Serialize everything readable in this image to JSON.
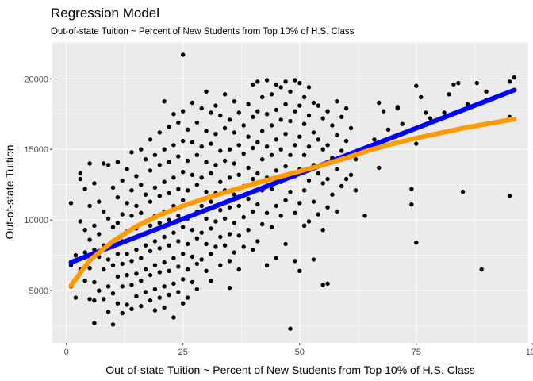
{
  "chart_data": {
    "type": "scatter",
    "title": "Regression Model",
    "subtitle": "Out-of-state Tuition ~ Percent of New Students from Top 10% of H.S. Class",
    "xlabel": "Out-of-state Tuition ~ Percent of New Students from Top 10% of H.S. Class",
    "ylabel": "Out-of-state Tuition",
    "xlim": [
      -3,
      99
    ],
    "ylim": [
      1300,
      22600
    ],
    "x_ticks": [
      0,
      25,
      50,
      75,
      100
    ],
    "x_tick_labels": [
      "0",
      "25",
      "50",
      "75",
      "100"
    ],
    "y_ticks": [
      5000,
      10000,
      15000,
      20000
    ],
    "y_tick_labels": [
      "5000",
      "10000",
      "15000",
      "20000"
    ],
    "grid": true,
    "legend": "none",
    "colors": {
      "panel": "#ebebeb",
      "grid": "#ffffff",
      "points": "#000000",
      "line_fit": "#0000ff",
      "curve_fit": "#ff9a00"
    },
    "points": [
      [
        1,
        11200
      ],
      [
        1,
        6800
      ],
      [
        1,
        5300
      ],
      [
        2,
        7500
      ],
      [
        2,
        4500
      ],
      [
        3,
        13300
      ],
      [
        3,
        12900
      ],
      [
        3,
        9900
      ],
      [
        3,
        6500
      ],
      [
        4,
        12200
      ],
      [
        4,
        9300
      ],
      [
        4,
        7700
      ],
      [
        4,
        5700
      ],
      [
        5,
        14000
      ],
      [
        5,
        11000
      ],
      [
        5,
        8600
      ],
      [
        5,
        6600
      ],
      [
        5,
        4400
      ],
      [
        6,
        12600
      ],
      [
        6,
        9600
      ],
      [
        6,
        7900
      ],
      [
        6,
        5600
      ],
      [
        6,
        4300
      ],
      [
        6,
        2700
      ],
      [
        7,
        11300
      ],
      [
        7,
        9000
      ],
      [
        7,
        7400
      ],
      [
        7,
        5000
      ],
      [
        8,
        14000
      ],
      [
        8,
        10600
      ],
      [
        8,
        8200
      ],
      [
        8,
        6500
      ],
      [
        8,
        4400
      ],
      [
        9,
        13900
      ],
      [
        9,
        10100
      ],
      [
        9,
        7200
      ],
      [
        9,
        5300
      ],
      [
        9,
        3500
      ],
      [
        10,
        12300
      ],
      [
        10,
        9500
      ],
      [
        10,
        8100
      ],
      [
        10,
        6800
      ],
      [
        10,
        4800
      ],
      [
        10,
        2600
      ],
      [
        11,
        14100
      ],
      [
        11,
        11600
      ],
      [
        11,
        9800
      ],
      [
        11,
        7600
      ],
      [
        11,
        6000
      ],
      [
        11,
        4100
      ],
      [
        12,
        12800
      ],
      [
        12,
        10400
      ],
      [
        12,
        8500
      ],
      [
        12,
        6900
      ],
      [
        12,
        5300
      ],
      [
        12,
        3400
      ],
      [
        13,
        13600
      ],
      [
        13,
        11200
      ],
      [
        13,
        9200
      ],
      [
        13,
        7600
      ],
      [
        13,
        6100
      ],
      [
        13,
        4000
      ],
      [
        14,
        14800
      ],
      [
        14,
        12100
      ],
      [
        14,
        10300
      ],
      [
        14,
        8700
      ],
      [
        14,
        7100
      ],
      [
        14,
        5400
      ],
      [
        14,
        3700
      ],
      [
        15,
        13100
      ],
      [
        15,
        11000
      ],
      [
        15,
        9400
      ],
      [
        15,
        7900
      ],
      [
        15,
        6200
      ],
      [
        15,
        4600
      ],
      [
        16,
        15000
      ],
      [
        16,
        12500
      ],
      [
        16,
        10500
      ],
      [
        16,
        8900
      ],
      [
        16,
        7300
      ],
      [
        16,
        5700
      ],
      [
        16,
        3900
      ],
      [
        17,
        14300
      ],
      [
        17,
        11800
      ],
      [
        17,
        9900
      ],
      [
        17,
        8200
      ],
      [
        17,
        6500
      ],
      [
        17,
        4900
      ],
      [
        18,
        15700
      ],
      [
        18,
        13500
      ],
      [
        18,
        11300
      ],
      [
        18,
        9600
      ],
      [
        18,
        7800
      ],
      [
        18,
        6100
      ],
      [
        18,
        4300
      ],
      [
        19,
        14600
      ],
      [
        19,
        12300
      ],
      [
        19,
        10300
      ],
      [
        19,
        8500
      ],
      [
        19,
        6800
      ],
      [
        19,
        5100
      ],
      [
        19,
        3600
      ],
      [
        20,
        16200
      ],
      [
        20,
        13900
      ],
      [
        20,
        11700
      ],
      [
        20,
        9800
      ],
      [
        20,
        8000
      ],
      [
        20,
        6300
      ],
      [
        20,
        4500
      ],
      [
        21,
        18400
      ],
      [
        21,
        15000
      ],
      [
        21,
        12700
      ],
      [
        21,
        10600
      ],
      [
        21,
        8800
      ],
      [
        21,
        7000
      ],
      [
        21,
        5300
      ],
      [
        21,
        3800
      ],
      [
        22,
        16600
      ],
      [
        22,
        14100
      ],
      [
        22,
        11900
      ],
      [
        22,
        10000
      ],
      [
        22,
        8200
      ],
      [
        22,
        6400
      ],
      [
        22,
        4700
      ],
      [
        23,
        17500
      ],
      [
        23,
        15300
      ],
      [
        23,
        13000
      ],
      [
        23,
        11000
      ],
      [
        23,
        9100
      ],
      [
        23,
        7300
      ],
      [
        23,
        5500
      ],
      [
        23,
        3100
      ],
      [
        24,
        16900
      ],
      [
        24,
        14500
      ],
      [
        24,
        12200
      ],
      [
        24,
        10300
      ],
      [
        24,
        8500
      ],
      [
        24,
        6700
      ],
      [
        24,
        4900
      ],
      [
        25,
        21700
      ],
      [
        25,
        17700
      ],
      [
        25,
        15600
      ],
      [
        25,
        13400
      ],
      [
        25,
        11400
      ],
      [
        25,
        9500
      ],
      [
        25,
        7600
      ],
      [
        25,
        5800
      ],
      [
        25,
        4100
      ],
      [
        26,
        16400
      ],
      [
        26,
        14200
      ],
      [
        26,
        12100
      ],
      [
        26,
        10100
      ],
      [
        26,
        8300
      ],
      [
        26,
        6500
      ],
      [
        26,
        4500
      ],
      [
        27,
        18300
      ],
      [
        27,
        15500
      ],
      [
        27,
        13200
      ],
      [
        27,
        11200
      ],
      [
        27,
        9300
      ],
      [
        27,
        7400
      ],
      [
        27,
        5600
      ],
      [
        28,
        16900
      ],
      [
        28,
        14600
      ],
      [
        28,
        12500
      ],
      [
        28,
        10600
      ],
      [
        28,
        8700
      ],
      [
        28,
        6900
      ],
      [
        28,
        5100
      ],
      [
        29,
        17900
      ],
      [
        29,
        15200
      ],
      [
        29,
        13000
      ],
      [
        29,
        11000
      ],
      [
        29,
        9100
      ],
      [
        29,
        7200
      ],
      [
        30,
        19100
      ],
      [
        30,
        16300
      ],
      [
        30,
        14100
      ],
      [
        30,
        12000
      ],
      [
        30,
        10100
      ],
      [
        30,
        8300
      ],
      [
        30,
        6400
      ],
      [
        31,
        17600
      ],
      [
        31,
        15400
      ],
      [
        31,
        13300
      ],
      [
        31,
        11300
      ],
      [
        31,
        9400
      ],
      [
        31,
        7600
      ],
      [
        31,
        5700
      ],
      [
        32,
        18100
      ],
      [
        32,
        16100
      ],
      [
        32,
        13900
      ],
      [
        32,
        11900
      ],
      [
        32,
        9900
      ],
      [
        32,
        8100
      ],
      [
        33,
        17400
      ],
      [
        33,
        14900
      ],
      [
        33,
        12700
      ],
      [
        33,
        10700
      ],
      [
        33,
        8800
      ],
      [
        33,
        6800
      ],
      [
        34,
        18900
      ],
      [
        34,
        16500
      ],
      [
        34,
        14200
      ],
      [
        34,
        12100
      ],
      [
        34,
        10100
      ],
      [
        34,
        8200
      ],
      [
        35,
        17100
      ],
      [
        35,
        15000
      ],
      [
        35,
        13000
      ],
      [
        35,
        10900
      ],
      [
        35,
        9000
      ],
      [
        35,
        7100
      ],
      [
        35,
        5200
      ],
      [
        36,
        18400
      ],
      [
        36,
        16200
      ],
      [
        36,
        14000
      ],
      [
        36,
        11800
      ],
      [
        36,
        9800
      ],
      [
        36,
        7700
      ],
      [
        37,
        17600
      ],
      [
        37,
        15300
      ],
      [
        37,
        13200
      ],
      [
        37,
        11000
      ],
      [
        37,
        8900
      ],
      [
        37,
        6500
      ],
      [
        38,
        16700
      ],
      [
        38,
        14700
      ],
      [
        38,
        12400
      ],
      [
        38,
        10200
      ],
      [
        38,
        8100
      ],
      [
        39,
        18200
      ],
      [
        39,
        15900
      ],
      [
        39,
        13700
      ],
      [
        39,
        11500
      ],
      [
        39,
        9300
      ],
      [
        40,
        19600
      ],
      [
        40,
        17300
      ],
      [
        40,
        15100
      ],
      [
        40,
        12900
      ],
      [
        40,
        10600
      ],
      [
        40,
        7900
      ],
      [
        41,
        19800
      ],
      [
        41,
        17700
      ],
      [
        41,
        15500
      ],
      [
        41,
        13300
      ],
      [
        41,
        11100
      ],
      [
        41,
        8500
      ],
      [
        42,
        18700
      ],
      [
        42,
        16300
      ],
      [
        42,
        14300
      ],
      [
        42,
        12100
      ],
      [
        42,
        9700
      ],
      [
        43,
        19900
      ],
      [
        43,
        17500
      ],
      [
        43,
        15200
      ],
      [
        43,
        13000
      ],
      [
        43,
        10500
      ],
      [
        43,
        6800
      ],
      [
        44,
        18900
      ],
      [
        44,
        16700
      ],
      [
        44,
        14600
      ],
      [
        44,
        12200
      ],
      [
        44,
        9500
      ],
      [
        45,
        19600
      ],
      [
        45,
        17800
      ],
      [
        45,
        15700
      ],
      [
        45,
        13500
      ],
      [
        45,
        11000
      ],
      [
        45,
        7300
      ],
      [
        46,
        19400
      ],
      [
        46,
        17100
      ],
      [
        46,
        15000
      ],
      [
        46,
        12700
      ],
      [
        46,
        10300
      ],
      [
        47,
        19800
      ],
      [
        47,
        18200
      ],
      [
        47,
        16100
      ],
      [
        47,
        13800
      ],
      [
        47,
        11400
      ],
      [
        47,
        8300
      ],
      [
        48,
        19100
      ],
      [
        48,
        17000
      ],
      [
        48,
        14600
      ],
      [
        48,
        12000
      ],
      [
        48,
        2300
      ],
      [
        49,
        19900
      ],
      [
        49,
        17700
      ],
      [
        49,
        15300
      ],
      [
        49,
        13100
      ],
      [
        49,
        10500
      ],
      [
        49,
        7100
      ],
      [
        50,
        19700
      ],
      [
        50,
        18100
      ],
      [
        50,
        15900
      ],
      [
        50,
        13600
      ],
      [
        50,
        11200
      ],
      [
        50,
        6400
      ],
      [
        51,
        18700
      ],
      [
        51,
        16800
      ],
      [
        51,
        14600
      ],
      [
        51,
        12100
      ],
      [
        51,
        9600
      ],
      [
        52,
        19400
      ],
      [
        52,
        17400
      ],
      [
        52,
        15200
      ],
      [
        52,
        12800
      ],
      [
        52,
        9900
      ],
      [
        53,
        18300
      ],
      [
        53,
        16200
      ],
      [
        53,
        13900
      ],
      [
        53,
        11300
      ],
      [
        53,
        7200
      ],
      [
        54,
        18100
      ],
      [
        54,
        15700
      ],
      [
        54,
        13300
      ],
      [
        54,
        10400
      ],
      [
        55,
        17200
      ],
      [
        55,
        15000
      ],
      [
        55,
        12600
      ],
      [
        55,
        9300
      ],
      [
        55,
        5400
      ],
      [
        56,
        17700
      ],
      [
        56,
        15300
      ],
      [
        56,
        12900
      ],
      [
        56,
        10900
      ],
      [
        56,
        5500
      ],
      [
        57,
        16700
      ],
      [
        57,
        14400
      ],
      [
        57,
        11800
      ],
      [
        58,
        18400
      ],
      [
        58,
        16000
      ],
      [
        58,
        13600
      ],
      [
        58,
        10600
      ],
      [
        59,
        17300
      ],
      [
        59,
        14900
      ],
      [
        59,
        12400
      ],
      [
        60,
        17900
      ],
      [
        60,
        15600
      ],
      [
        60,
        12900
      ],
      [
        61,
        16500
      ],
      [
        61,
        13200
      ],
      [
        62,
        14300
      ],
      [
        62,
        12100
      ],
      [
        64,
        10300
      ],
      [
        66,
        15700
      ],
      [
        67,
        18300
      ],
      [
        67,
        13700
      ],
      [
        68,
        17700
      ],
      [
        69,
        16400
      ],
      [
        71,
        18000
      ],
      [
        71,
        17900
      ],
      [
        72,
        16800
      ],
      [
        74,
        12200
      ],
      [
        74,
        11100
      ],
      [
        75,
        19500
      ],
      [
        75,
        15400
      ],
      [
        75,
        8400
      ],
      [
        76,
        18700
      ],
      [
        77,
        17600
      ],
      [
        78,
        17200
      ],
      [
        81,
        17600
      ],
      [
        82,
        18900
      ],
      [
        83,
        19600
      ],
      [
        84,
        19700
      ],
      [
        85,
        12000
      ],
      [
        86,
        18200
      ],
      [
        88,
        19700
      ],
      [
        89,
        6500
      ],
      [
        90,
        19100
      ],
      [
        90,
        18500
      ],
      [
        95,
        19800
      ],
      [
        95,
        17300
      ],
      [
        95,
        11700
      ],
      [
        96,
        20100
      ]
    ],
    "fits": [
      {
        "label": "blue",
        "color": "#0000ff",
        "x": [
          1,
          96
        ],
        "y": [
          7000,
          19200
        ]
      },
      {
        "label": "orange",
        "color": "#ff9a00",
        "x": [
          1,
          5,
          10,
          15,
          20,
          25,
          30,
          35,
          40,
          45,
          50,
          55,
          60,
          65,
          70,
          75,
          80,
          85,
          90,
          96
        ],
        "y": [
          5350,
          7150,
          8500,
          9550,
          10350,
          11000,
          11550,
          12050,
          12550,
          13000,
          13450,
          13900,
          14400,
          14950,
          15400,
          15800,
          16150,
          16500,
          16800,
          17150
        ]
      }
    ]
  }
}
